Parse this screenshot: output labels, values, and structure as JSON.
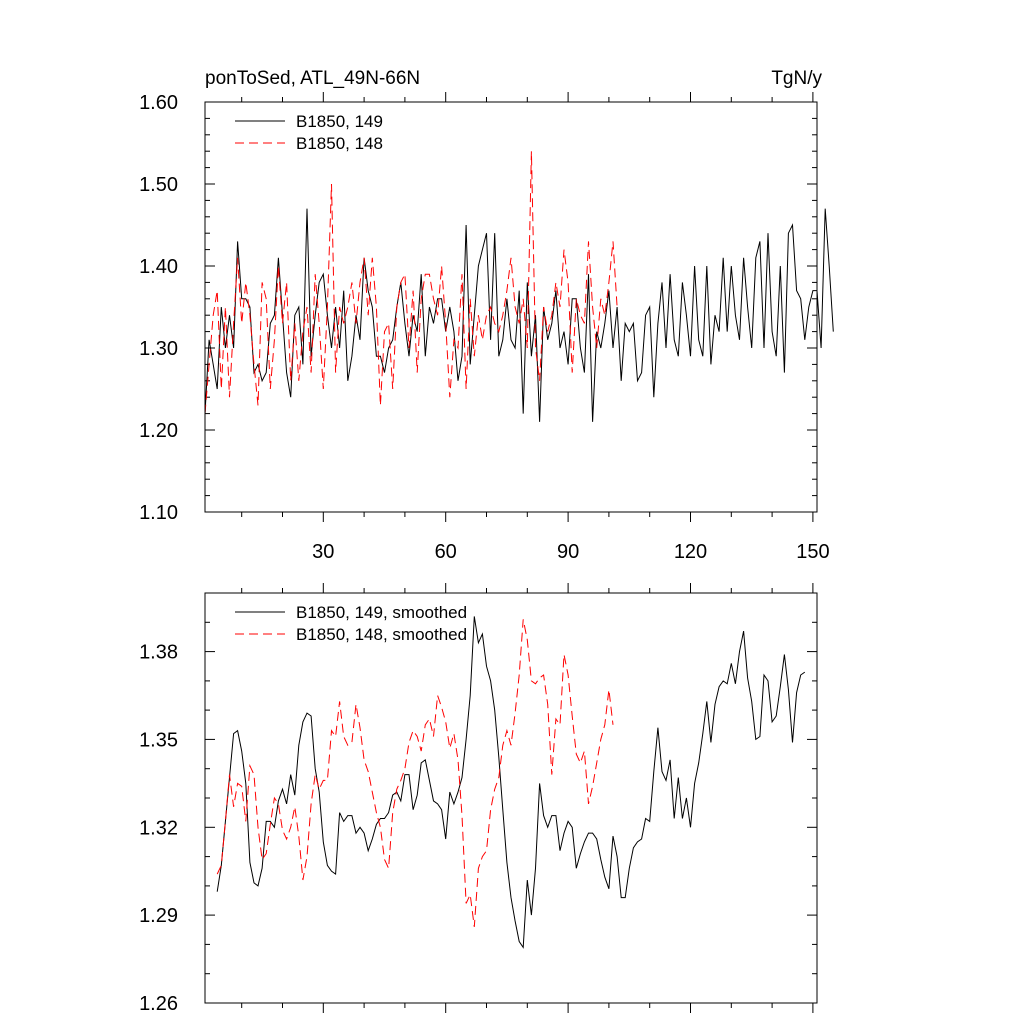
{
  "chart_data": [
    {
      "type": "line",
      "title_left": "ponToSed, ATL_49N-66N",
      "title_right": "TgN/y",
      "xlabel": "",
      "ylabel": "",
      "xlim": [
        1,
        151
      ],
      "ylim": [
        1.1,
        1.6
      ],
      "xticks": [
        30,
        60,
        90,
        120,
        150
      ],
      "xtick_labels": [
        "30",
        "60",
        "90",
        "120",
        "150"
      ],
      "yticks": [
        1.1,
        1.2,
        1.3,
        1.4,
        1.5,
        1.6
      ],
      "ytick_labels": [
        "1.10",
        "1.20",
        "1.30",
        "1.40",
        "1.50",
        "1.60"
      ],
      "series": [
        {
          "name": "B1850, 149",
          "color": "#000000",
          "dash": "solid",
          "start_x": 1,
          "values": [
            1.22,
            1.31,
            1.28,
            1.25,
            1.35,
            1.3,
            1.34,
            1.3,
            1.43,
            1.36,
            1.36,
            1.35,
            1.27,
            1.28,
            1.26,
            1.27,
            1.33,
            1.34,
            1.41,
            1.34,
            1.27,
            1.24,
            1.34,
            1.35,
            1.28,
            1.47,
            1.29,
            1.34,
            1.38,
            1.39,
            1.34,
            1.3,
            1.35,
            1.3,
            1.37,
            1.26,
            1.29,
            1.34,
            1.31,
            1.41,
            1.37,
            1.35,
            1.29,
            1.29,
            1.27,
            1.3,
            1.31,
            1.35,
            1.38,
            1.33,
            1.29,
            1.34,
            1.32,
            1.39,
            1.29,
            1.35,
            1.33,
            1.36,
            1.36,
            1.32,
            1.35,
            1.32,
            1.26,
            1.29,
            1.45,
            1.28,
            1.34,
            1.4,
            1.42,
            1.44,
            1.31,
            1.44,
            1.29,
            1.31,
            1.36,
            1.31,
            1.3,
            1.37,
            1.22,
            1.38,
            1.29,
            1.34,
            1.21,
            1.35,
            1.31,
            1.33,
            1.37,
            1.3,
            1.32,
            1.28,
            1.36,
            1.36,
            1.3,
            1.27,
            1.39,
            1.21,
            1.32,
            1.3,
            1.33,
            1.37,
            1.3,
            1.35,
            1.26,
            1.33,
            1.32,
            1.33,
            1.26,
            1.27,
            1.34,
            1.35,
            1.24,
            1.33,
            1.38,
            1.3,
            1.39,
            1.31,
            1.29,
            1.38,
            1.34,
            1.29,
            1.4,
            1.31,
            1.29,
            1.4,
            1.28,
            1.34,
            1.32,
            1.41,
            1.32,
            1.4,
            1.34,
            1.31,
            1.41,
            1.35,
            1.3,
            1.41,
            1.43,
            1.3,
            1.44,
            1.32,
            1.29,
            1.4,
            1.27,
            1.44,
            1.45,
            1.37,
            1.36,
            1.31,
            1.35,
            1.37,
            1.37,
            1.3,
            1.47,
            1.4,
            1.32
          ]
        },
        {
          "name": "B1850, 148",
          "color": "#ff0000",
          "dash": "dashed",
          "start_x": 1,
          "values": [
            1.22,
            1.28,
            1.34,
            1.37,
            1.25,
            1.35,
            1.24,
            1.33,
            1.41,
            1.33,
            1.38,
            1.34,
            1.28,
            1.23,
            1.38,
            1.36,
            1.25,
            1.31,
            1.4,
            1.33,
            1.38,
            1.26,
            1.33,
            1.26,
            1.32,
            1.35,
            1.27,
            1.39,
            1.33,
            1.25,
            1.35,
            1.5,
            1.27,
            1.35,
            1.33,
            1.35,
            1.38,
            1.33,
            1.38,
            1.41,
            1.34,
            1.41,
            1.35,
            1.23,
            1.32,
            1.33,
            1.25,
            1.35,
            1.38,
            1.39,
            1.3,
            1.37,
            1.27,
            1.36,
            1.39,
            1.39,
            1.36,
            1.34,
            1.4,
            1.33,
            1.24,
            1.31,
            1.3,
            1.39,
            1.25,
            1.36,
            1.29,
            1.34,
            1.31,
            1.34,
            1.35,
            1.33,
            1.32,
            1.34,
            1.37,
            1.41,
            1.35,
            1.33,
            1.36,
            1.3,
            1.54,
            1.3,
            1.26,
            1.35,
            1.32,
            1.34,
            1.38,
            1.35,
            1.42,
            1.38,
            1.27,
            1.36,
            1.34,
            1.33,
            1.43,
            1.35,
            1.3,
            1.36,
            1.34,
            1.38,
            1.43,
            1.35
          ]
        }
      ]
    },
    {
      "type": "line",
      "title": "",
      "xlabel": "",
      "ylabel": "",
      "xlim": [
        1,
        151
      ],
      "ylim": [
        1.26,
        1.4
      ],
      "xticks": [
        30,
        60,
        90,
        120,
        150
      ],
      "yticks": [
        1.26,
        1.29,
        1.32,
        1.35,
        1.38
      ],
      "ytick_labels": [
        "1.26",
        "1.29",
        "1.32",
        "1.35",
        "1.38"
      ],
      "series": [
        {
          "name": "B1850, 149, smoothed",
          "color": "#000000",
          "dash": "solid",
          "start_x": 4,
          "values": [
            1.298,
            1.307,
            1.322,
            1.337,
            1.352,
            1.353,
            1.346,
            1.335,
            1.308,
            1.301,
            1.3,
            1.306,
            1.322,
            1.322,
            1.32,
            1.329,
            1.333,
            1.328,
            1.338,
            1.331,
            1.348,
            1.356,
            1.359,
            1.358,
            1.34,
            1.332,
            1.315,
            1.307,
            1.305,
            1.304,
            1.325,
            1.322,
            1.324,
            1.324,
            1.318,
            1.32,
            1.318,
            1.312,
            1.316,
            1.321,
            1.323,
            1.323,
            1.325,
            1.331,
            1.332,
            1.329,
            1.338,
            1.338,
            1.326,
            1.331,
            1.342,
            1.343,
            1.336,
            1.329,
            1.328,
            1.326,
            1.316,
            1.332,
            1.328,
            1.332,
            1.337,
            1.35,
            1.365,
            1.392,
            1.383,
            1.386,
            1.375,
            1.37,
            1.36,
            1.344,
            1.326,
            1.308,
            1.296,
            1.288,
            1.281,
            1.279,
            1.302,
            1.29,
            1.306,
            1.335,
            1.324,
            1.32,
            1.324,
            1.324,
            1.312,
            1.318,
            1.322,
            1.32,
            1.306,
            1.311,
            1.315,
            1.318,
            1.318,
            1.316,
            1.309,
            1.303,
            1.299,
            1.317,
            1.31,
            1.296,
            1.296,
            1.306,
            1.313,
            1.315,
            1.316,
            1.323,
            1.322,
            1.339,
            1.354,
            1.339,
            1.336,
            1.343,
            1.323,
            1.337,
            1.323,
            1.33,
            1.32,
            1.335,
            1.342,
            1.352,
            1.363,
            1.349,
            1.362,
            1.368,
            1.37,
            1.369,
            1.376,
            1.369,
            1.38,
            1.387,
            1.371,
            1.363,
            1.35,
            1.351,
            1.372,
            1.37,
            1.356,
            1.358,
            1.368,
            1.379,
            1.367,
            1.349,
            1.366,
            1.372,
            1.373
          ]
        },
        {
          "name": "B1850, 148, smoothed",
          "color": "#ff0000",
          "dash": "dashed",
          "start_x": 4,
          "values": [
            1.304,
            1.307,
            1.322,
            1.338,
            1.327,
            1.335,
            1.334,
            1.322,
            1.341,
            1.338,
            1.32,
            1.309,
            1.311,
            1.321,
            1.33,
            1.328,
            1.319,
            1.316,
            1.32,
            1.327,
            1.317,
            1.302,
            1.31,
            1.328,
            1.338,
            1.333,
            1.336,
            1.336,
            1.353,
            1.351,
            1.363,
            1.351,
            1.348,
            1.349,
            1.362,
            1.354,
            1.343,
            1.339,
            1.332,
            1.325,
            1.32,
            1.309,
            1.306,
            1.325,
            1.333,
            1.336,
            1.34,
            1.349,
            1.353,
            1.351,
            1.346,
            1.355,
            1.357,
            1.351,
            1.365,
            1.361,
            1.356,
            1.347,
            1.352,
            1.343,
            1.324,
            1.294,
            1.297,
            1.286,
            1.306,
            1.31,
            1.312,
            1.326,
            1.333,
            1.337,
            1.348,
            1.353,
            1.348,
            1.359,
            1.372,
            1.391,
            1.384,
            1.37,
            1.369,
            1.371,
            1.372,
            1.362,
            1.338,
            1.357,
            1.355,
            1.379,
            1.372,
            1.358,
            1.345,
            1.342,
            1.346,
            1.328,
            1.334,
            1.342,
            1.35,
            1.355,
            1.367,
            1.355
          ]
        }
      ]
    }
  ]
}
